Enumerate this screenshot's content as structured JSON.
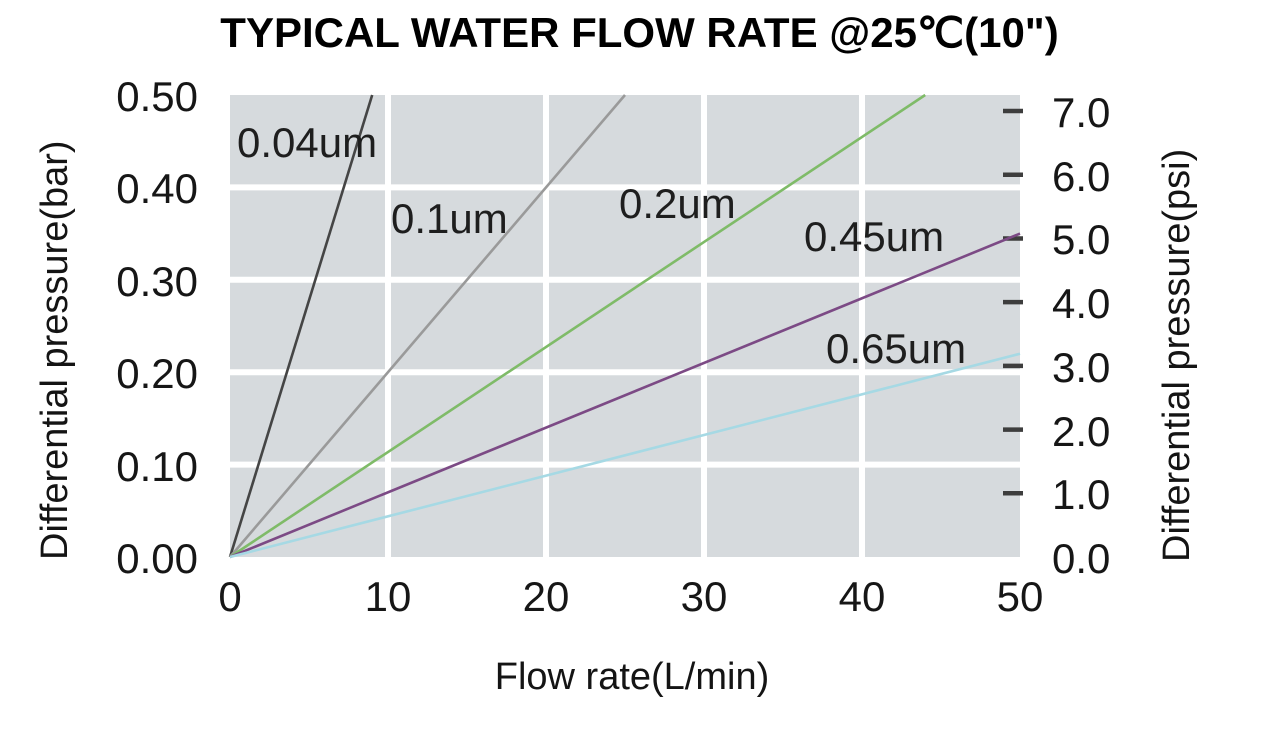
{
  "chart_data": {
    "type": "line",
    "title": "TYPICAL WATER FLOW RATE @25℃(10\")",
    "x_axis": {
      "title": "Flow rate(L/min)",
      "min": 0,
      "max": 50,
      "ticks": [
        {
          "label": "0",
          "value": 0
        },
        {
          "label": "10",
          "value": 10
        },
        {
          "label": "20",
          "value": 20
        },
        {
          "label": "30",
          "value": 30
        },
        {
          "label": "40",
          "value": 40
        },
        {
          "label": "50",
          "value": 50
        }
      ]
    },
    "y_axis_left": {
      "title": "Differential pressure(bar)",
      "min": 0,
      "max": 0.5,
      "ticks": [
        {
          "label": "0.50",
          "value": 0.5
        },
        {
          "label": "0.40",
          "value": 0.4
        },
        {
          "label": "0.30",
          "value": 0.3
        },
        {
          "label": "0.20",
          "value": 0.2
        },
        {
          "label": "0.10",
          "value": 0.1
        },
        {
          "label": "0.00",
          "value": 0.0
        }
      ]
    },
    "y_axis_right": {
      "title": "Differential pressure(psi)",
      "min": 0,
      "max": 7.2519,
      "ticks": [
        {
          "label": "7.0",
          "value": 7.0
        },
        {
          "label": "6.0",
          "value": 6.0
        },
        {
          "label": "5.0",
          "value": 5.0
        },
        {
          "label": "4.0",
          "value": 4.0
        },
        {
          "label": "3.0",
          "value": 3.0
        },
        {
          "label": "2.0",
          "value": 2.0
        },
        {
          "label": "1.0",
          "value": 1.0
        },
        {
          "label": "0.0",
          "value": 0.0
        }
      ]
    },
    "grid": {
      "show": true,
      "grid_color": "#ffffff",
      "plot_background": "#d6dadd",
      "tick_mark_color": "#3d3d3d"
    },
    "series": [
      {
        "name": "0.04um",
        "color": "#454545",
        "points": [
          [
            0,
            0
          ],
          [
            9,
            0.5
          ]
        ]
      },
      {
        "name": "0.1um",
        "color": "#9a9a9a",
        "points": [
          [
            0,
            0
          ],
          [
            25,
            0.5
          ]
        ]
      },
      {
        "name": "0.2um",
        "color": "#7fbb68",
        "points": [
          [
            0,
            0
          ],
          [
            44,
            0.5
          ]
        ]
      },
      {
        "name": "0.45um",
        "color": "#7c4a85",
        "points": [
          [
            0,
            0
          ],
          [
            50,
            0.35
          ]
        ]
      },
      {
        "name": "0.65um",
        "color": "#a6d9e4",
        "points": [
          [
            0,
            0
          ],
          [
            50,
            0.22
          ]
        ]
      }
    ],
    "units": {
      "x": "L/min",
      "y_left": "bar",
      "y_right": "psi"
    }
  }
}
